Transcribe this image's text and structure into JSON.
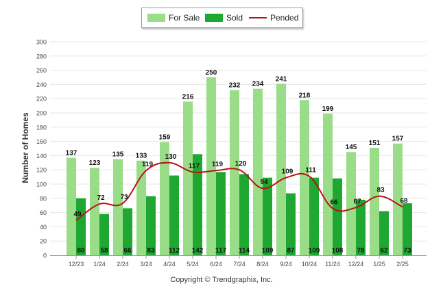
{
  "chart_data": {
    "type": "bar",
    "categories": [
      "12/23",
      "1/24",
      "2/24",
      "3/24",
      "4/24",
      "5/24",
      "6/24",
      "7/24",
      "8/24",
      "9/24",
      "10/24",
      "11/24",
      "12/24",
      "1/25",
      "2/25"
    ],
    "series": [
      {
        "name": "For Sale",
        "type": "bar",
        "color": "#99dd88",
        "values": [
          137,
          123,
          135,
          133,
          159,
          216,
          250,
          232,
          234,
          241,
          218,
          199,
          145,
          151,
          157
        ]
      },
      {
        "name": "Sold",
        "type": "bar",
        "color": "#1ea832",
        "values": [
          80,
          58,
          66,
          83,
          112,
          142,
          117,
          114,
          109,
          87,
          109,
          108,
          78,
          62,
          73
        ]
      },
      {
        "name": "Pended",
        "type": "line",
        "color": "#bb1111",
        "values": [
          49,
          72,
          73,
          119,
          130,
          117,
          119,
          120,
          94,
          109,
          111,
          66,
          67,
          83,
          68
        ]
      }
    ],
    "ylabel": "Number of Homes",
    "ylim": [
      0,
      300
    ],
    "yticks": [
      0,
      20,
      40,
      60,
      80,
      100,
      120,
      140,
      160,
      180,
      200,
      220,
      240,
      260,
      280,
      300
    ],
    "grid": true,
    "legend": "top-center"
  },
  "copyright": "Copyright © Trendgraphix, Inc."
}
